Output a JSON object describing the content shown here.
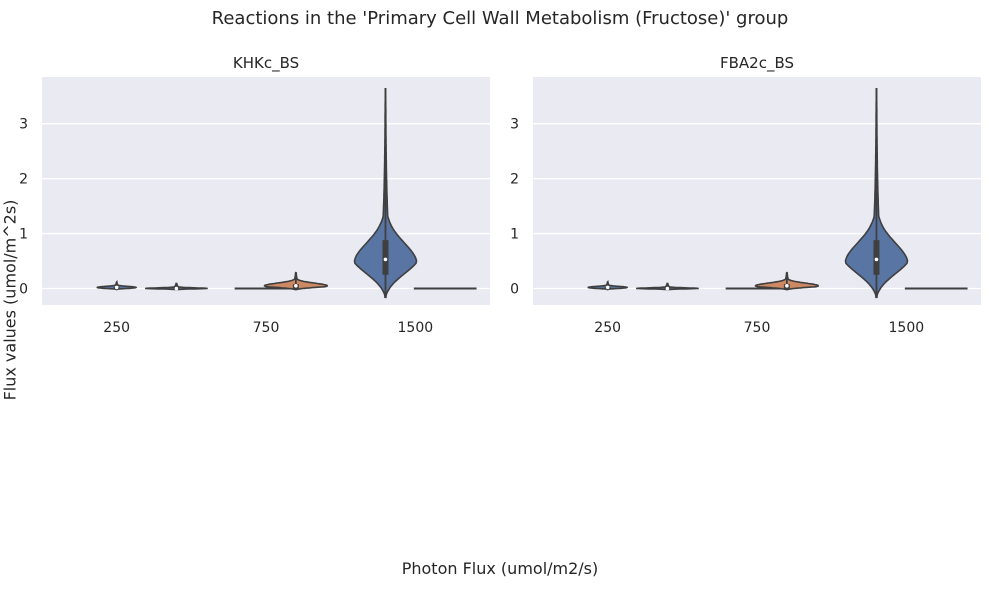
{
  "title": "Reactions in the 'Primary Cell Wall Metabolism (Fructose)' group",
  "xlabel": "Photon Flux (umol/m2/s)",
  "ylabel": "Flux values (umol/m^2s)",
  "colors": {
    "background": "#eaeaf2",
    "grid": "#ffffff",
    "blue": "#5975a4",
    "orange": "#cc8963",
    "edge": "#3f3f3f"
  },
  "chart_data": [
    {
      "type": "violin",
      "title": "KHKc_BS",
      "xticks": [
        "250",
        "750",
        "1500"
      ],
      "ylim": [
        -0.3,
        3.85
      ],
      "yticks": [
        0,
        1,
        2,
        3
      ],
      "grid": true,
      "violins": [
        {
          "position": 0,
          "color": "#5975a4",
          "min": -0.02,
          "max": 0.12,
          "q1": 0.0,
          "median": 0.02,
          "q3": 0.03,
          "mode": 0.02,
          "halfwidth": 0.13
        },
        {
          "position": 0.4,
          "color": "#5975a4",
          "min": -0.02,
          "max": 0.1,
          "q1": 0.0,
          "median": 0.0,
          "q3": 0.02,
          "mode": 0.0,
          "halfwidth": 0.21
        },
        {
          "position": 1.0,
          "color": "#5975a4",
          "min": 0.0,
          "max": 0.0,
          "q1": 0.0,
          "median": 0.0,
          "q3": 0.0,
          "mode": 0.0,
          "halfwidth": 0.21
        },
        {
          "position": 1.2,
          "color": "#cc8963",
          "min": -0.02,
          "max": 0.3,
          "q1": 0.0,
          "median": 0.05,
          "q3": 0.08,
          "mode": 0.05,
          "halfwidth": 0.21
        },
        {
          "position": 1.8,
          "color": "#5975a4",
          "min": -0.16,
          "max": 3.65,
          "q1": 0.25,
          "median": 0.53,
          "q3": 0.88,
          "mode": 0.45,
          "halfwidth": 0.21
        },
        {
          "position": 2.2,
          "color": "#5975a4",
          "min": 0.0,
          "max": 0.0,
          "q1": 0.0,
          "median": 0.0,
          "q3": 0.0,
          "mode": 0.0,
          "halfwidth": 0.21
        }
      ]
    },
    {
      "type": "violin",
      "title": "FBA2c_BS",
      "xticks": [
        "250",
        "750",
        "1500"
      ],
      "ylim": [
        -0.3,
        3.85
      ],
      "yticks": [
        0,
        1,
        2,
        3
      ],
      "grid": true,
      "violins": [
        {
          "position": 0,
          "color": "#5975a4",
          "min": -0.02,
          "max": 0.12,
          "q1": 0.0,
          "median": 0.02,
          "q3": 0.03,
          "mode": 0.02,
          "halfwidth": 0.13
        },
        {
          "position": 0.4,
          "color": "#5975a4",
          "min": -0.02,
          "max": 0.1,
          "q1": 0.0,
          "median": 0.0,
          "q3": 0.02,
          "mode": 0.0,
          "halfwidth": 0.21
        },
        {
          "position": 1.0,
          "color": "#5975a4",
          "min": 0.0,
          "max": 0.0,
          "q1": 0.0,
          "median": 0.0,
          "q3": 0.0,
          "mode": 0.0,
          "halfwidth": 0.21
        },
        {
          "position": 1.2,
          "color": "#cc8963",
          "min": -0.02,
          "max": 0.3,
          "q1": 0.0,
          "median": 0.05,
          "q3": 0.08,
          "mode": 0.05,
          "halfwidth": 0.21
        },
        {
          "position": 1.8,
          "color": "#5975a4",
          "min": -0.16,
          "max": 3.65,
          "q1": 0.25,
          "median": 0.53,
          "q3": 0.88,
          "mode": 0.45,
          "halfwidth": 0.21
        },
        {
          "position": 2.2,
          "color": "#5975a4",
          "min": 0.0,
          "max": 0.0,
          "q1": 0.0,
          "median": 0.0,
          "q3": 0.0,
          "mode": 0.0,
          "halfwidth": 0.21
        }
      ]
    }
  ]
}
